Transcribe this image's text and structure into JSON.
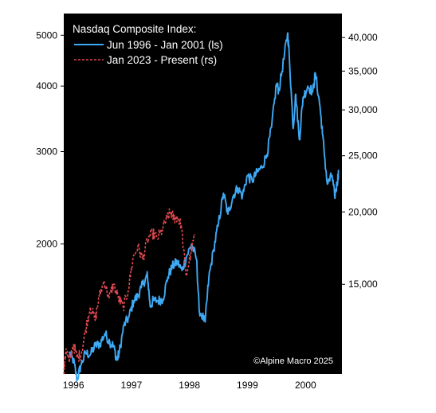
{
  "chart_data": {
    "type": "line",
    "title": "Nasdaq Composite Index:",
    "source": "©Alpine Macro 2025",
    "grid": false,
    "legend_position": "top-left",
    "background": "#000000",
    "x_tick_labels": [
      "1996",
      "1997",
      "1998",
      "1999",
      "2000"
    ],
    "xlim": [
      "1996-05-01",
      "2001-02-15"
    ],
    "y_left": {
      "scale": "log",
      "ylim": [
        1130,
        5500
      ],
      "ticks": [
        2000,
        3000,
        4000,
        5000
      ],
      "tick_labels": [
        "2000",
        "3000",
        "4000",
        "5000"
      ]
    },
    "y_right": {
      "scale": "log",
      "ylim": [
        10500,
        44000
      ],
      "ticks": [
        15000,
        20000,
        25000,
        30000,
        35000,
        40000
      ],
      "tick_labels": [
        "15,000",
        "20,000",
        "25,000",
        "30,000",
        "35,000",
        "40,000"
      ]
    },
    "series": [
      {
        "name": "Jun 1996 - Jan 2001 (ls)",
        "axis": "left",
        "color": "#3fa9f5",
        "style": "solid",
        "x": [
          "1996-06-03",
          "1996-07-01",
          "1996-07-24",
          "1996-08-15",
          "1996-09-15",
          "1996-10-15",
          "1996-11-15",
          "1996-12-15",
          "1997-01-15",
          "1997-02-15",
          "1997-03-10",
          "1997-03-31",
          "1997-04-15",
          "1997-05-15",
          "1997-06-15",
          "1997-07-15",
          "1997-08-10",
          "1997-09-01",
          "1997-10-01",
          "1997-10-10",
          "1997-10-27",
          "1997-11-15",
          "1997-12-15",
          "1998-01-15",
          "1998-02-15",
          "1998-03-15",
          "1998-04-15",
          "1998-05-15",
          "1998-06-15",
          "1998-07-15",
          "1998-08-15",
          "1998-08-31",
          "1998-10-08",
          "1998-10-31",
          "1998-11-30",
          "1998-12-31",
          "1999-01-31",
          "1999-02-28",
          "1999-03-31",
          "1999-04-30",
          "1999-05-31",
          "1999-06-30",
          "1999-07-31",
          "1999-08-31",
          "1999-09-30",
          "1999-10-31",
          "1999-11-30",
          "1999-12-31",
          "2000-01-15",
          "2000-02-15",
          "2000-03-10",
          "2000-03-20",
          "2000-04-14",
          "2000-04-30",
          "2000-05-23",
          "2000-06-15",
          "2000-07-15",
          "2000-08-15",
          "2000-09-01",
          "2000-09-30",
          "2000-10-15",
          "2000-11-15",
          "2000-12-15",
          "2000-12-31",
          "2001-01-15",
          "2001-01-25"
        ],
        "values": [
          1240,
          1200,
          1100,
          1170,
          1240,
          1230,
          1280,
          1290,
          1350,
          1300,
          1280,
          1200,
          1240,
          1400,
          1450,
          1560,
          1590,
          1650,
          1730,
          1740,
          1520,
          1560,
          1560,
          1570,
          1730,
          1810,
          1850,
          1780,
          1900,
          2000,
          1870,
          1500,
          1420,
          1720,
          1950,
          2190,
          2500,
          2280,
          2460,
          2560,
          2470,
          2700,
          2640,
          2740,
          2800,
          2960,
          3340,
          4040,
          3920,
          4500,
          5050,
          4600,
          3320,
          3860,
          3160,
          3800,
          4000,
          3900,
          4230,
          3650,
          3250,
          2600,
          2700,
          2470,
          2600,
          2750
        ]
      },
      {
        "name": "Jan 2023 - Present (rs)",
        "axis": "right",
        "color": "#e0484f",
        "style": "dashed",
        "x": [
          "1996-05-01",
          "1996-05-15",
          "1996-06-05",
          "1996-07-01",
          "1996-07-25",
          "1996-08-20",
          "1996-09-15",
          "1996-10-15",
          "1996-11-15",
          "1996-12-10",
          "1997-01-10",
          "1997-02-10",
          "1997-03-10",
          "1997-04-10",
          "1997-05-10",
          "1997-06-10",
          "1997-07-10",
          "1997-08-10",
          "1997-09-10",
          "1997-10-10",
          "1997-11-10",
          "1997-12-10",
          "1998-01-10",
          "1998-02-10",
          "1998-03-05",
          "1998-03-25",
          "1998-04-15",
          "1998-05-10",
          "1998-06-10",
          "1998-07-10",
          "1998-08-05"
        ],
        "values": [
          10500,
          11600,
          11000,
          11800,
          11200,
          11400,
          12500,
          13700,
          13000,
          14300,
          15200,
          14200,
          15000,
          14200,
          13700,
          14600,
          16600,
          17400,
          16600,
          17900,
          18400,
          18000,
          18600,
          19500,
          20000,
          19500,
          19600,
          19000,
          15500,
          17000,
          18300
        ]
      }
    ]
  }
}
